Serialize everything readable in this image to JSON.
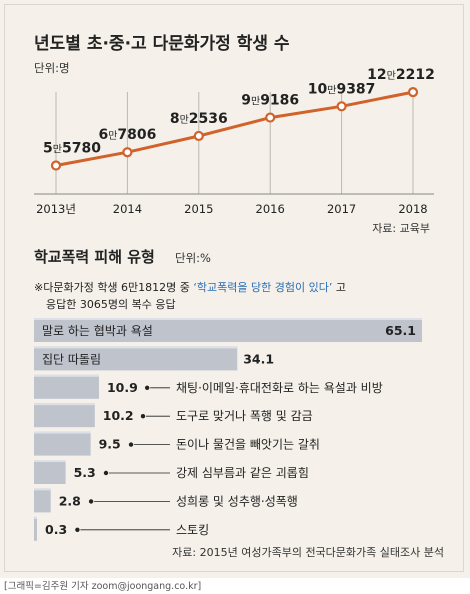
{
  "credit": "[그래픽=김주원 기자 zoom@joongang.co.kr]",
  "chart_data": [
    {
      "type": "line",
      "title": "년도별 초·중·고 다문화가정 학생 수",
      "unit": "단위:명",
      "source": "자료: 교육부",
      "x": [
        "2013년",
        "2014",
        "2015",
        "2016",
        "2017",
        "2018"
      ],
      "series": [
        {
          "values": [
            55780,
            67806,
            82536,
            99186,
            109387,
            122212
          ]
        }
      ],
      "value_labels": [
        {
          "man": "5",
          "rest": "5780"
        },
        {
          "man": "6",
          "rest": "7806"
        },
        {
          "man": "8",
          "rest": "2536"
        },
        {
          "man": "9",
          "rest": "9186"
        },
        {
          "man": "10",
          "rest": "9387"
        },
        {
          "man": "12",
          "rest": "2212"
        }
      ],
      "man_label": "만",
      "ylim": [
        30000,
        135000
      ],
      "grid": "vertical",
      "colors": {
        "line": "#d0622a",
        "marker_fill": "#ffffff",
        "grid": "#bdb8af"
      }
    },
    {
      "type": "bar",
      "orientation": "horizontal",
      "title": "학교폭력 피해 유형",
      "unit": "단위:%",
      "note_line1_pre": "※다문화가정 학생 6만1812명 중 ",
      "note_line1_quote": "‘학교폭력을 당한 경험이 있다’",
      "note_line1_post": " 고",
      "note_line2": "응답한 3065명의 복수 응답",
      "source": "자료: 2015년 여성가족부의 전국다문화가족 실태조사 분석",
      "categories": [
        "말로 하는 협박과 욕설",
        "집단 따돌림",
        "채팅·이메일·휴대전화로 하는 욕설과 비방",
        "도구로 맞거나 폭행 및 감금",
        "돈이나 물건을 빼앗기는 갈취",
        "강제 심부름과 같은 괴롭힘",
        "성희롱 및 성추행·성폭행",
        "스토킹"
      ],
      "values": [
        65.1,
        34.1,
        10.9,
        10.2,
        9.5,
        5.3,
        2.8,
        0.3
      ],
      "value_labels": [
        "65.1",
        "34.1",
        "10.9",
        "10.2",
        "9.5",
        "5.3",
        "2.8",
        "0.3"
      ],
      "xlim": [
        0,
        65.1
      ],
      "colors": {
        "bar": "#bec3cc",
        "bar_top": "#dde0e6",
        "text": "#222222",
        "quote": "#2a6fb5"
      }
    }
  ]
}
